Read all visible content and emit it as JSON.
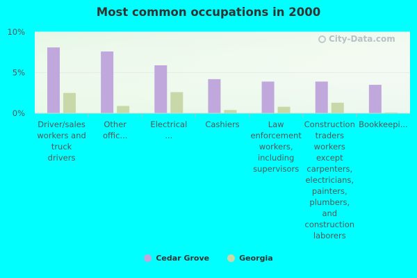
{
  "chart_data": {
    "type": "bar",
    "title": "Most common occupations in 2000",
    "categories": [
      "Driver/sales workers and truck drivers",
      "Other offic...",
      "Electrical ...",
      "Cashiers",
      "Law enforcement workers, including supervisors",
      "Construction traders workers except carpenters, electricians, painters, plumbers, and construction laborers",
      "Bookkeepi..."
    ],
    "series": [
      {
        "name": "Cedar Grove",
        "color": "#c0a8dc",
        "values": [
          8.1,
          7.6,
          5.9,
          4.2,
          3.9,
          3.9,
          3.5
        ]
      },
      {
        "name": "Georgia",
        "color": "#c8d8a8",
        "values": [
          2.5,
          0.9,
          2.6,
          0.4,
          0.8,
          1.3,
          0.1
        ]
      }
    ],
    "y_ticks": [
      "0%",
      "5%",
      "10%"
    ],
    "ylim": [
      0,
      10
    ],
    "grid": true,
    "legend_position": "bottom"
  },
  "watermark": {
    "text": "City-Data.com",
    "icon": "city-data-logo-icon"
  }
}
